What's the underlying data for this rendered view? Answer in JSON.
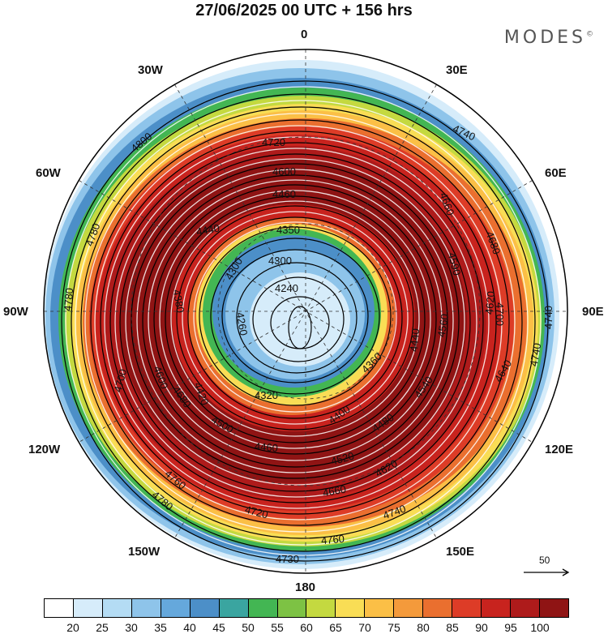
{
  "title": "27/06/2025  00 UTC  + 156 hrs",
  "brand": "MODES",
  "brand_mark": "©",
  "longitude_labels": {
    "lon_0": "0",
    "lon_30e": "30E",
    "lon_60e": "60E",
    "lon_90e": "90E",
    "lon_120e": "120E",
    "lon_150e": "150E",
    "lon_180": "180",
    "lon_150w": "150W",
    "lon_120w": "120W",
    "lon_90w": "90W",
    "lon_60w": "60W",
    "lon_30w": "30W"
  },
  "contours": {
    "c4800": "4800",
    "c4780a": "4780",
    "c4780b": "4780",
    "c4780c": "4780",
    "c4740a": "4740",
    "c4740b": "4740",
    "c4740c": "4740",
    "c4740d": "4740",
    "c4760a": "4760",
    "c4760b": "4760",
    "c4730": "4730",
    "c4720a": "4720",
    "c4720b": "4720",
    "c4700a": "4700",
    "c4700b": "4700",
    "c4680a": "4680",
    "c4680b": "4680",
    "c4660a": "4660",
    "c4660b": "4660",
    "c4640": "4640",
    "c4620a": "4620",
    "c4620b": "4620",
    "c4600a": "4600",
    "c4600b": "4600",
    "c4590": "4590",
    "c4560": "4560",
    "c4540": "4540",
    "c4520": "4520",
    "c4500": "4500",
    "c4480": "4480",
    "c4460a": "4460",
    "c4460b": "4460",
    "c4440a": "4440",
    "c4440b": "4440",
    "c4420": "4420",
    "c4400": "4400",
    "c4380": "4380",
    "c4360": "4360",
    "c4350": "4350",
    "c4320": "4320",
    "c4300a": "4300",
    "c4300b": "4300",
    "c4260": "4260",
    "c4240": "4240"
  },
  "wind_scale_label": "50",
  "colorbar": {
    "colors": [
      "#ffffff",
      "#d6ecfa",
      "#b4dcf4",
      "#8ec4ea",
      "#65a8dc",
      "#4c8fc8",
      "#3aa5a0",
      "#43b653",
      "#7dc244",
      "#c4d940",
      "#f9dd55",
      "#fbbf46",
      "#f49a3b",
      "#ea6f2f",
      "#dd3c27",
      "#c8231e",
      "#ae1b1b",
      "#8f1414"
    ],
    "ticks": [
      "20",
      "25",
      "30",
      "35",
      "40",
      "45",
      "50",
      "55",
      "60",
      "65",
      "70",
      "75",
      "80",
      "85",
      "90",
      "95",
      "100"
    ]
  }
}
